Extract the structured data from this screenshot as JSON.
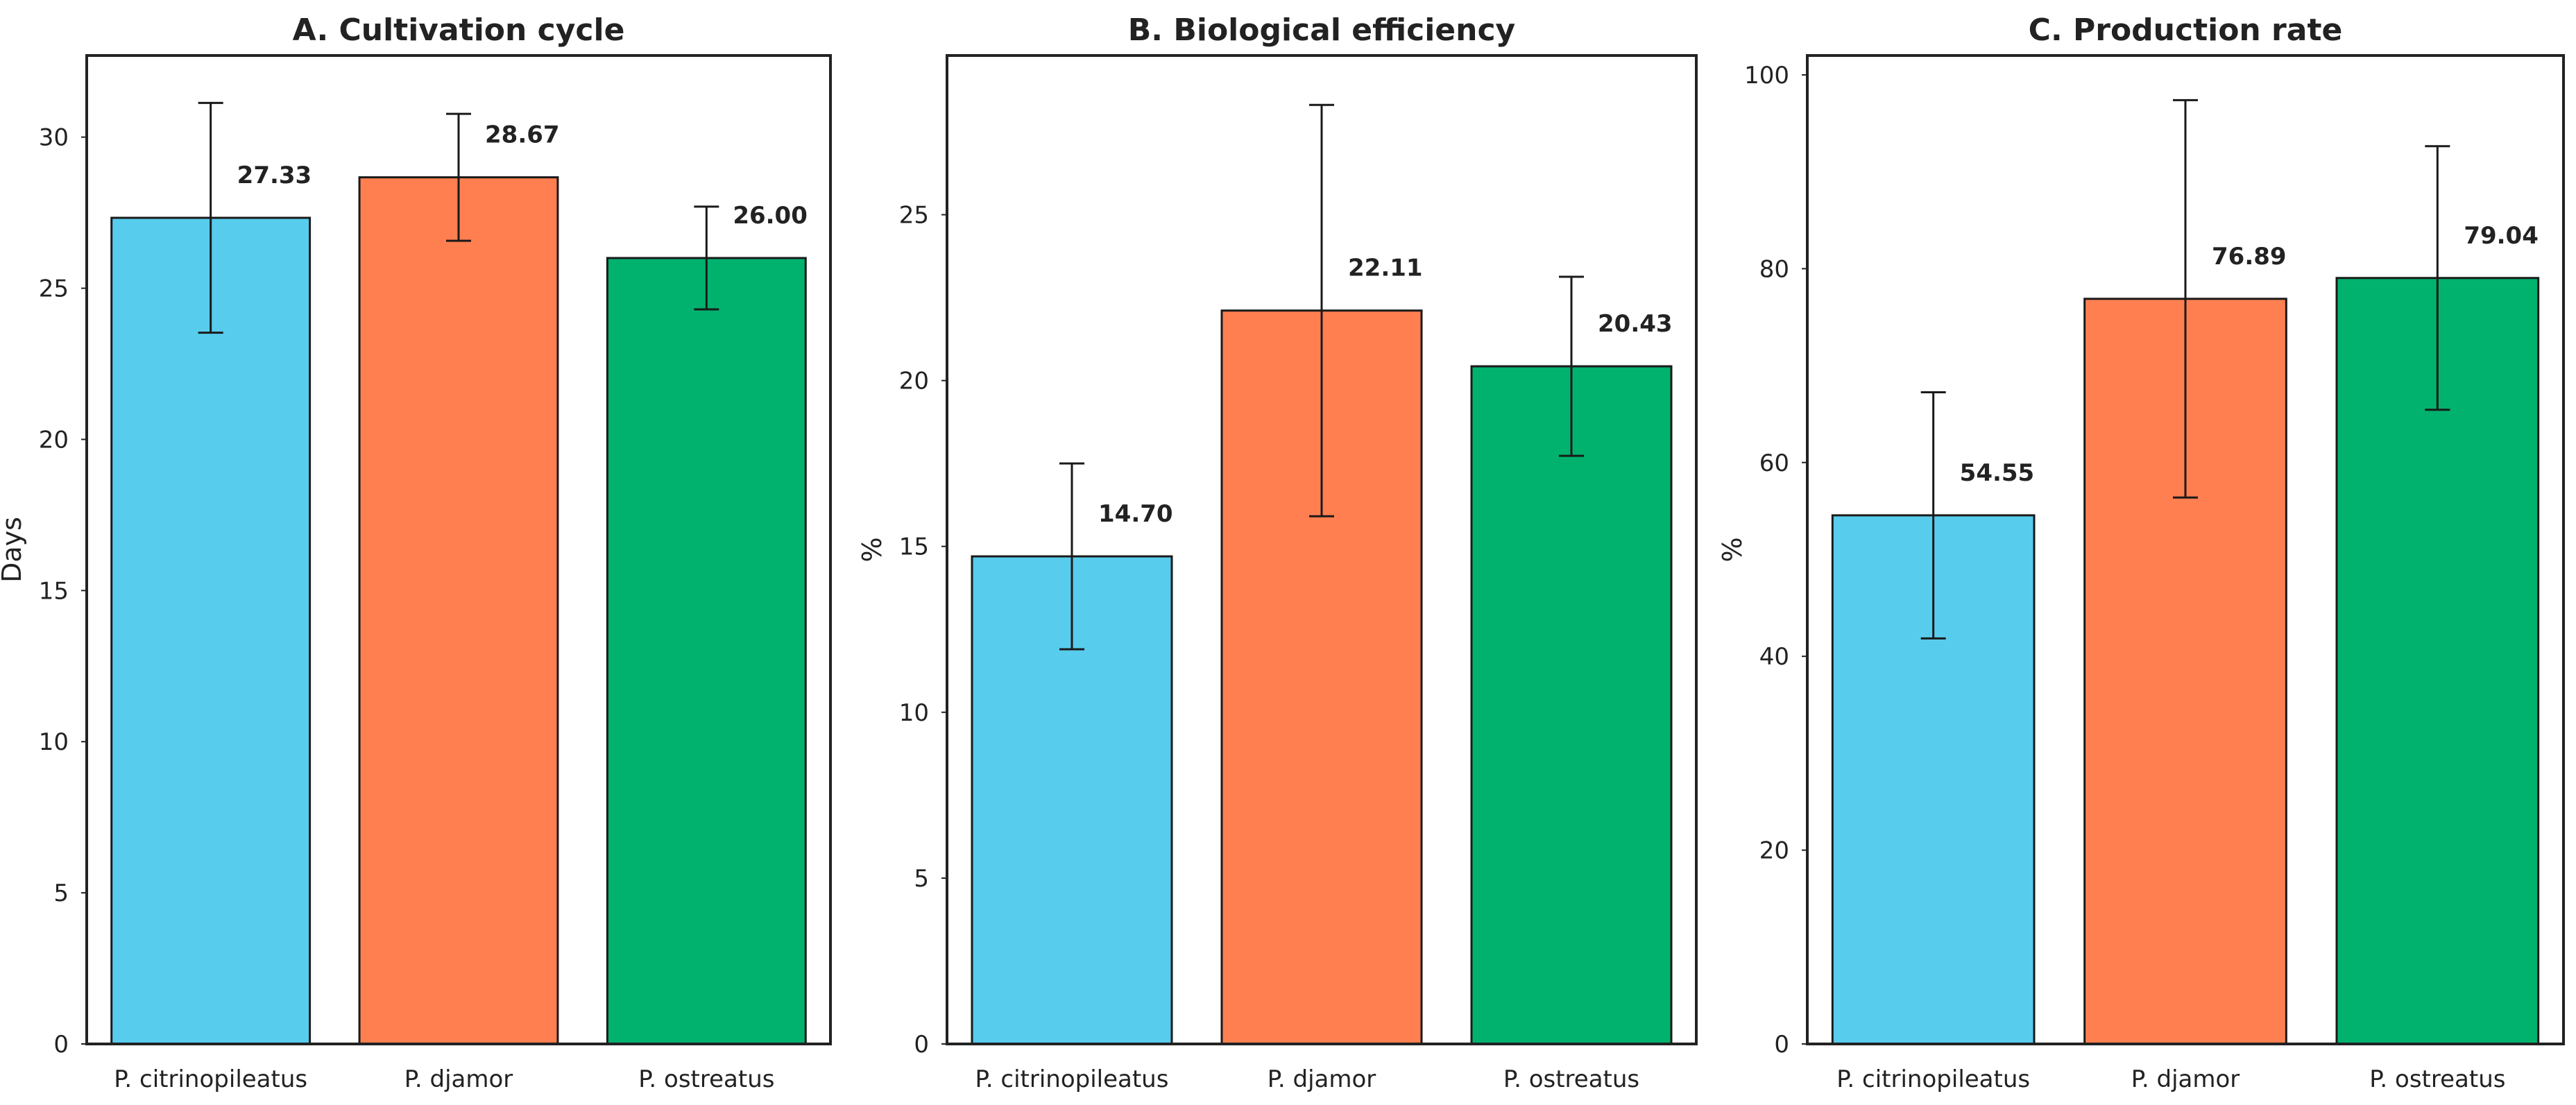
{
  "chart_data": [
    {
      "type": "bar",
      "title": "A. Cultivation cycle",
      "xlabel": "",
      "ylabel": "Days",
      "categories": [
        "P. citrinopileatus",
        "P. djamor",
        "P. ostreatus"
      ],
      "values": [
        27.33,
        28.67,
        26.0
      ],
      "value_labels": [
        "27.33",
        "28.67",
        "26.00"
      ],
      "errors": [
        3.8,
        2.1,
        1.7
      ],
      "colors": [
        "#58CCED",
        "#FF7F50",
        "#00B26E"
      ],
      "ylim": [
        0,
        32.7
      ],
      "yticks": [
        0,
        5,
        10,
        15,
        20,
        25,
        30
      ],
      "grid": false
    },
    {
      "type": "bar",
      "title": "B. Biological efficiency",
      "xlabel": "",
      "ylabel": "%",
      "categories": [
        "P. citrinopileatus",
        "P. djamor",
        "P. ostreatus"
      ],
      "values": [
        14.7,
        22.11,
        20.43
      ],
      "value_labels": [
        "14.70",
        "22.11",
        "20.43"
      ],
      "errors": [
        2.8,
        6.2,
        2.7
      ],
      "colors": [
        "#58CCED",
        "#FF7F50",
        "#00B26E"
      ],
      "ylim": [
        0,
        29.8
      ],
      "yticks": [
        0,
        5,
        10,
        15,
        20,
        25
      ],
      "grid": false
    },
    {
      "type": "bar",
      "title": "C. Production rate",
      "xlabel": "",
      "ylabel": "%",
      "categories": [
        "P. citrinopileatus",
        "P. djamor",
        "P. ostreatus"
      ],
      "values": [
        54.55,
        76.89,
        79.04
      ],
      "value_labels": [
        "54.55",
        "76.89",
        "79.04"
      ],
      "errors": [
        12.7,
        20.5,
        13.6
      ],
      "colors": [
        "#58CCED",
        "#FF7F50",
        "#00B26E"
      ],
      "ylim": [
        0,
        102
      ],
      "yticks": [
        0,
        20,
        40,
        60,
        80,
        100
      ],
      "grid": false
    }
  ]
}
